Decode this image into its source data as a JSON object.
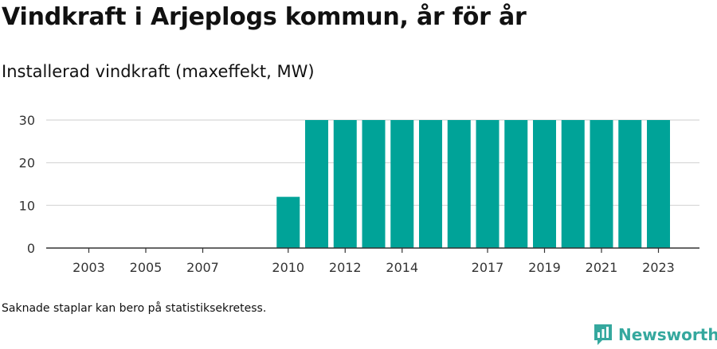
{
  "title": "Vindkraft i Arjeplogs kommun, år för år",
  "subtitle": "Installerad vindkraft (maxeffekt, MW)",
  "note": "Saknade staplar kan bero på statistiksekretess.",
  "brand": {
    "name": "Newsworthy",
    "icon": "newsworthy-logo-icon",
    "color": "#35a89e"
  },
  "chart_data": {
    "type": "bar",
    "title": "",
    "xlabel": "",
    "ylabel": "",
    "ylim": [
      0,
      30
    ],
    "yticks": [
      0,
      10,
      20,
      30
    ],
    "grid": true,
    "bar_color": "#00a398",
    "x": [
      2002,
      2003,
      2004,
      2005,
      2006,
      2007,
      2008,
      2009,
      2010,
      2011,
      2012,
      2013,
      2014,
      2015,
      2016,
      2017,
      2018,
      2019,
      2020,
      2021,
      2022,
      2023
    ],
    "values": [
      0,
      0,
      0,
      0,
      0,
      0,
      0,
      0,
      12,
      30,
      30,
      30,
      30,
      30,
      30,
      30,
      30,
      30,
      30,
      30,
      30,
      30
    ],
    "xtick_labels": [
      2003,
      2005,
      2007,
      2010,
      2012,
      2014,
      2017,
      2019,
      2021,
      2023
    ]
  }
}
